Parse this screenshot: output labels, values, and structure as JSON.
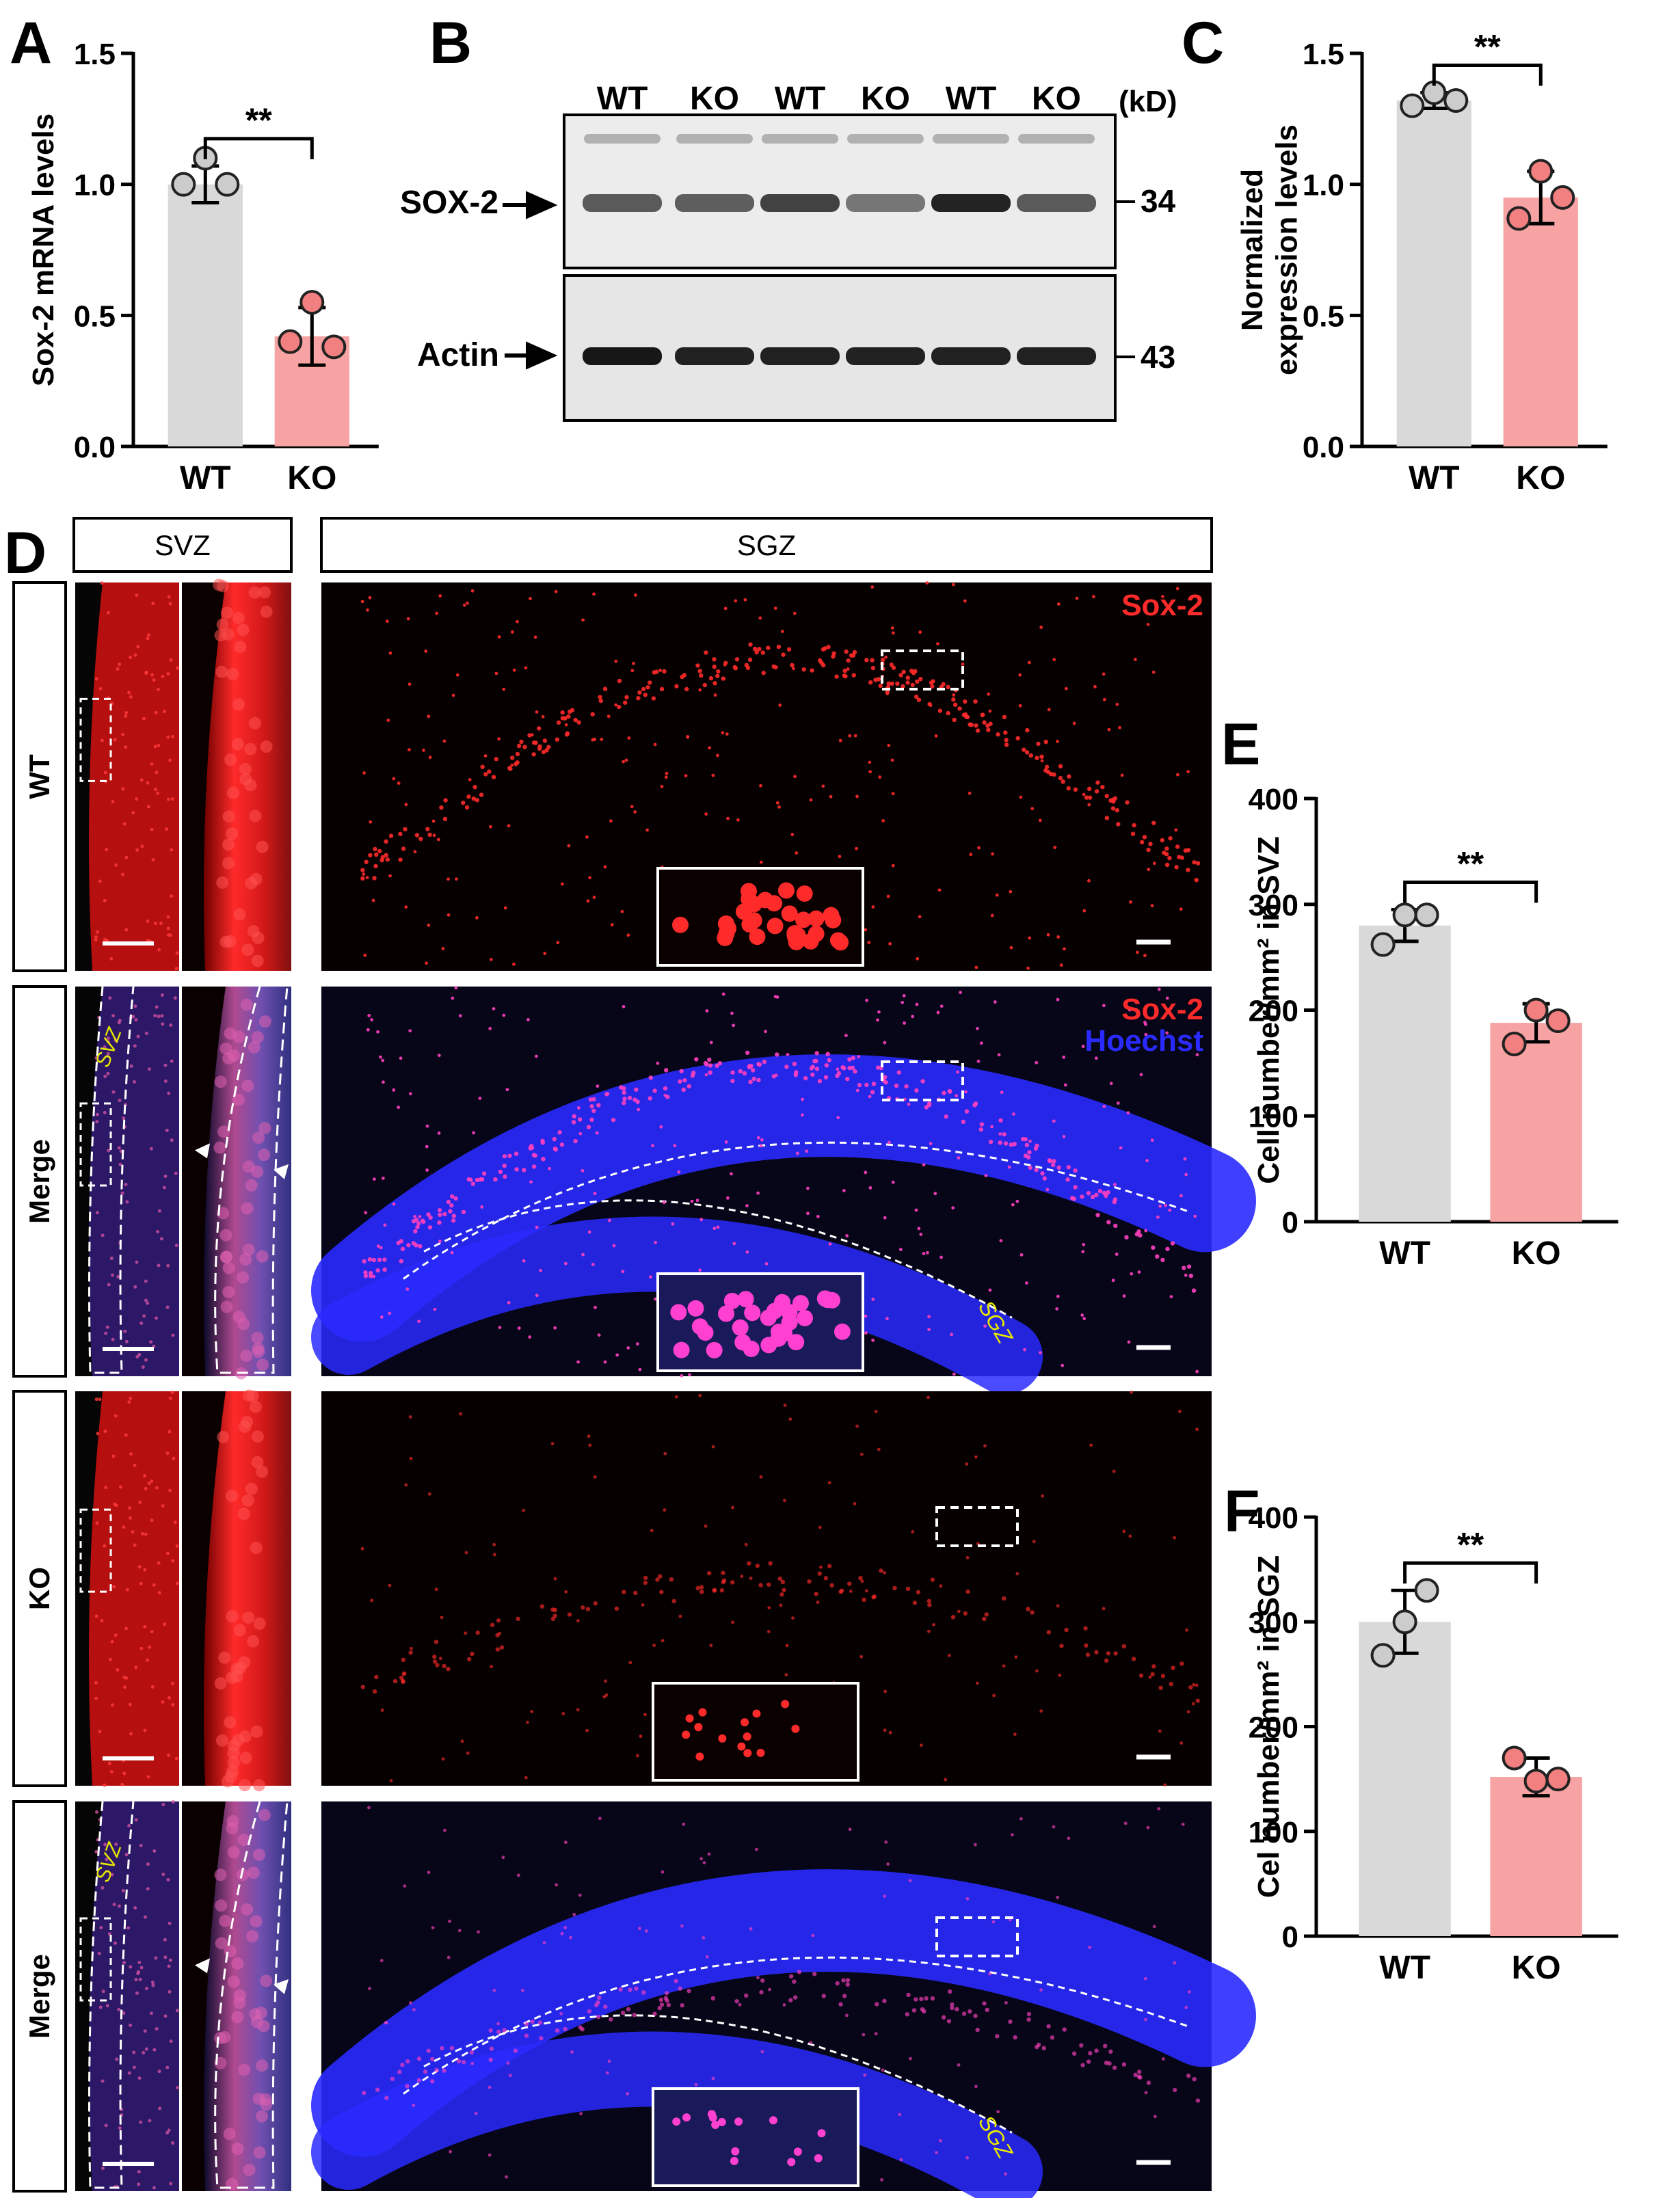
{
  "panels": {
    "A": "A",
    "B": "B",
    "C": "C",
    "D": "D",
    "E": "E",
    "F": "F"
  },
  "western_blot": {
    "lane_labels": [
      "WT",
      "KO",
      "WT",
      "KO",
      "WT",
      "KO"
    ],
    "unit_label": "(kD)",
    "top_row": {
      "label": "SOX-2",
      "marker": "34",
      "band_intensity": [
        0.62,
        0.6,
        0.72,
        0.5,
        0.85,
        0.62
      ]
    },
    "bottom_row": {
      "label": "Actin",
      "marker": "43",
      "band_intensity": [
        0.9,
        0.86,
        0.86,
        0.86,
        0.86,
        0.86
      ]
    }
  },
  "micrographs": {
    "svz_header": "SVZ",
    "sgz_header": "SGZ",
    "rows": [
      {
        "label": "WT",
        "stain": "red",
        "svz_label": "",
        "sgz_label": "",
        "legend_lines": [
          "Sox-2"
        ]
      },
      {
        "label": "Merge",
        "stain": "merge",
        "svz_label": "SVZ",
        "sgz_label": "SGZ",
        "legend_lines": [
          "Sox-2",
          "Hoechst"
        ]
      },
      {
        "label": "KO",
        "stain": "red",
        "svz_label": "",
        "sgz_label": "",
        "legend_lines": []
      },
      {
        "label": "Merge",
        "stain": "merge",
        "svz_label": "SVZ",
        "sgz_label": "SGZ",
        "legend_lines": []
      }
    ],
    "colors": {
      "sox2": "#ff2a2a",
      "hoechst": "#2a2aff",
      "annotation": "#e8e800"
    }
  },
  "chart_data": [
    {
      "panel": "A",
      "type": "bar",
      "categories": [
        "WT",
        "KO"
      ],
      "values": [
        1.0,
        0.42
      ],
      "errors": [
        0.07,
        0.11
      ],
      "points": [
        [
          1.0,
          1.1,
          1.0
        ],
        [
          0.4,
          0.55,
          0.38
        ]
      ],
      "ylabel": "Sox-2 mRNA levels",
      "ylim": [
        0,
        1.5
      ],
      "yticks": [
        0.0,
        0.5,
        1.0,
        1.5
      ],
      "ytick_labels": [
        "0.0",
        "0.5",
        "1.0",
        "1.5"
      ],
      "significance": "**",
      "colors": [
        "#d9d9d9",
        "#f7a3a3"
      ],
      "point_colors": [
        "#cccccc",
        "#f28080"
      ]
    },
    {
      "panel": "C",
      "type": "bar",
      "categories": [
        "WT",
        "KO"
      ],
      "values": [
        1.32,
        0.95
      ],
      "errors": [
        0.03,
        0.1
      ],
      "points": [
        [
          1.3,
          1.35,
          1.32
        ],
        [
          0.87,
          1.05,
          0.95
        ]
      ],
      "ylabel": "Normalized expression levels",
      "ylim": [
        0,
        1.5
      ],
      "yticks": [
        0.0,
        0.5,
        1.0,
        1.5
      ],
      "ytick_labels": [
        "0.0",
        "0.5",
        "1.0",
        "1.5"
      ],
      "significance": "**",
      "colors": [
        "#d9d9d9",
        "#f7a3a3"
      ],
      "point_colors": [
        "#cccccc",
        "#f28080"
      ]
    },
    {
      "panel": "E",
      "type": "bar",
      "categories": [
        "WT",
        "KO"
      ],
      "values": [
        280,
        188
      ],
      "errors": [
        15,
        18
      ],
      "points": [
        [
          262,
          290,
          290
        ],
        [
          168,
          200,
          190
        ]
      ],
      "ylabel": "Cell number/mm² in SVZ",
      "ylim": [
        0,
        400
      ],
      "yticks": [
        0,
        100,
        200,
        300,
        400
      ],
      "ytick_labels": [
        "0",
        "100",
        "200",
        "300",
        "400"
      ],
      "significance": "**",
      "colors": [
        "#d9d9d9",
        "#f7a3a3"
      ],
      "point_colors": [
        "#cccccc",
        "#f28080"
      ]
    },
    {
      "panel": "F",
      "type": "bar",
      "categories": [
        "WT",
        "KO"
      ],
      "values": [
        300,
        152
      ],
      "errors": [
        30,
        18
      ],
      "points": [
        [
          268,
          300,
          330
        ],
        [
          170,
          148,
          150
        ]
      ],
      "ylabel": "Cel number/mm² in SGZ",
      "ylim": [
        0,
        400
      ],
      "yticks": [
        0,
        100,
        200,
        300,
        400
      ],
      "ytick_labels": [
        "0",
        "100",
        "200",
        "300",
        "400"
      ],
      "significance": "**",
      "colors": [
        "#d9d9d9",
        "#f7a3a3"
      ],
      "point_colors": [
        "#cccccc",
        "#f28080"
      ]
    }
  ]
}
